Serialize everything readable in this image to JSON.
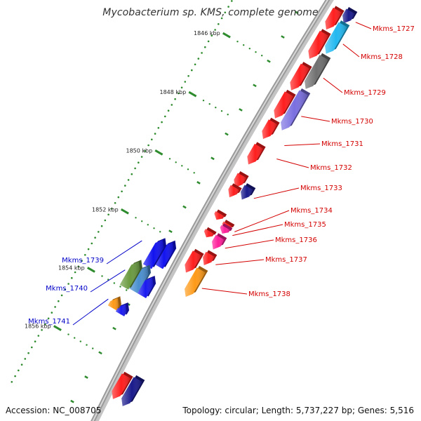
{
  "title": "Mycobacterium sp. KMS, complete genome",
  "accession_label": "Accession: NC_008705",
  "summary_label": "Topology: circular; Length: 5,737,227 bp; Genes: 5,516",
  "colors": {
    "forward_label": "#d40000",
    "reverse_label": "#0000c8",
    "backbone": "#9a9a9a",
    "ticks": "#2e8b2e"
  },
  "scale_labels": [
    "1846 kbp",
    "1848 kbp",
    "1850 kbp",
    "1852 kbp",
    "1854 kbp",
    "1856 kbp"
  ],
  "forward_genes": [
    {
      "name": "Mkms_1727",
      "color": "#1a1a8c"
    },
    {
      "name": "Mkms_1728",
      "color": "#22b8f0"
    },
    {
      "name": "Mkms_1729",
      "color": "#707070"
    },
    {
      "name": "Mkms_1730",
      "color": "#7a6fe0"
    },
    {
      "name": "Mkms_1731",
      "color": "#ff2020"
    },
    {
      "name": "Mkms_1732",
      "color": "#ff2020"
    },
    {
      "name": "Mkms_1733",
      "color": "#1a1a8c"
    },
    {
      "name": "Mkms_1734",
      "color": "#ff2020"
    },
    {
      "name": "Mkms_1735",
      "color": "#ff1f9a"
    },
    {
      "name": "Mkms_1736",
      "color": "#ff1f9a"
    },
    {
      "name": "Mkms_1737",
      "color": "#ff2020"
    },
    {
      "name": "Mkms_1738",
      "color": "#ff9a18"
    }
  ],
  "reverse_genes": [
    {
      "name": "Mkms_1739",
      "color": "#1212f0"
    },
    {
      "name": "Mkms_1740",
      "color": "#4a8fd0"
    },
    {
      "name": "Mkms_1741",
      "color": "#ff9a18"
    }
  ]
}
